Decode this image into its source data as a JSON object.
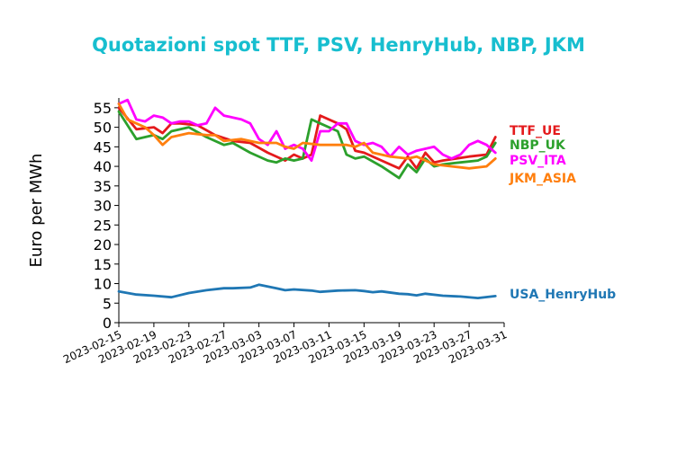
{
  "chart_data": {
    "type": "line",
    "title": "Quotazioni spot TTF, PSV, HenryHub, NBP, JKM",
    "title_color": "#17becf",
    "ylabel": "Euro per MWh",
    "xlabel": "",
    "ylim": [
      0,
      57.5
    ],
    "yticks": [
      0,
      5,
      10,
      15,
      20,
      25,
      30,
      35,
      40,
      45,
      50,
      55
    ],
    "xlim": [
      "2023-02-15",
      "2023-03-31"
    ],
    "xticks": [
      "2023-02-15",
      "2023-02-19",
      "2023-02-23",
      "2023-02-27",
      "2023-03-03",
      "2023-03-07",
      "2023-03-11",
      "2023-03-15",
      "2023-03-19",
      "2023-03-23",
      "2023-03-27",
      "2023-03-31"
    ],
    "grid": false,
    "legend": "labels at right end of lines",
    "series": [
      {
        "name": "TTF_UE",
        "color": "#e41a1c",
        "x": [
          "2023-02-15",
          "2023-02-17",
          "2023-02-19",
          "2023-02-20",
          "2023-02-21",
          "2023-02-22",
          "2023-02-24",
          "2023-02-26",
          "2023-02-28",
          "2023-03-02",
          "2023-03-04",
          "2023-03-06",
          "2023-03-07",
          "2023-03-08",
          "2023-03-09",
          "2023-03-10",
          "2023-03-12",
          "2023-03-13",
          "2023-03-14",
          "2023-03-15",
          "2023-03-17",
          "2023-03-19",
          "2023-03-20",
          "2023-03-21",
          "2023-03-22",
          "2023-03-23",
          "2023-03-24",
          "2023-03-27",
          "2023-03-29",
          "2023-03-30"
        ],
        "y": [
          55,
          49.5,
          50,
          48.5,
          51,
          51,
          50.5,
          48,
          46.5,
          46,
          43.5,
          41.5,
          43,
          42,
          43,
          53,
          51,
          49.5,
          44,
          43.5,
          41.5,
          39.5,
          42.5,
          39.5,
          43.5,
          41,
          41.5,
          42.5,
          43,
          47.5
        ]
      },
      {
        "name": "NBP_UK",
        "color": "#2ca02c",
        "x": [
          "2023-02-15",
          "2023-02-17",
          "2023-02-18",
          "2023-02-19",
          "2023-02-20",
          "2023-02-21",
          "2023-02-23",
          "2023-02-25",
          "2023-02-27",
          "2023-02-28",
          "2023-03-02",
          "2023-03-04",
          "2023-03-05",
          "2023-03-06",
          "2023-03-07",
          "2023-03-08",
          "2023-03-09",
          "2023-03-10",
          "2023-03-12",
          "2023-03-13",
          "2023-03-14",
          "2023-03-15",
          "2023-03-17",
          "2023-03-19",
          "2023-03-20",
          "2023-03-21",
          "2023-03-22",
          "2023-03-23",
          "2023-03-24",
          "2023-03-26",
          "2023-03-28",
          "2023-03-29",
          "2023-03-30"
        ],
        "y": [
          54,
          47,
          47.5,
          48,
          47,
          49,
          50,
          47.5,
          45.5,
          46,
          43.5,
          41.5,
          41,
          42,
          41.5,
          42,
          52,
          51,
          49,
          43,
          42,
          42.5,
          40,
          37,
          40.5,
          38.5,
          42,
          40,
          40.5,
          41,
          41.5,
          42.5,
          46
        ]
      },
      {
        "name": "PSV_ITA",
        "color": "#ff00ff",
        "x": [
          "2023-02-15",
          "2023-02-16",
          "2023-02-17",
          "2023-02-18",
          "2023-02-19",
          "2023-02-20",
          "2023-02-21",
          "2023-02-22",
          "2023-02-23",
          "2023-02-24",
          "2023-02-25",
          "2023-02-26",
          "2023-02-27",
          "2023-02-28",
          "2023-03-01",
          "2023-03-02",
          "2023-03-03",
          "2023-03-04",
          "2023-03-05",
          "2023-03-06",
          "2023-03-07",
          "2023-03-08",
          "2023-03-09",
          "2023-03-10",
          "2023-03-11",
          "2023-03-12",
          "2023-03-13",
          "2023-03-14",
          "2023-03-15",
          "2023-03-16",
          "2023-03-17",
          "2023-03-18",
          "2023-03-19",
          "2023-03-20",
          "2023-03-21",
          "2023-03-22",
          "2023-03-23",
          "2023-03-24",
          "2023-03-25",
          "2023-03-26",
          "2023-03-27",
          "2023-03-28",
          "2023-03-29",
          "2023-03-30"
        ],
        "y": [
          56,
          57,
          52,
          51.5,
          53,
          52.5,
          51,
          51.5,
          51.5,
          50.5,
          51,
          55,
          53,
          52.5,
          52,
          51,
          47,
          45.5,
          49,
          44.5,
          45.5,
          44.5,
          41.5,
          49,
          49,
          51,
          51,
          46.5,
          45.5,
          46,
          45,
          42.5,
          45,
          43,
          44,
          44.5,
          45,
          43,
          42,
          43,
          45.5,
          46.5,
          45.5,
          43.5
        ]
      },
      {
        "name": "JKM_ASIA",
        "color": "#ff7f0e",
        "x": [
          "2023-02-15",
          "2023-02-16",
          "2023-02-17",
          "2023-02-18",
          "2023-02-19",
          "2023-02-20",
          "2023-02-21",
          "2023-02-23",
          "2023-02-25",
          "2023-02-26",
          "2023-02-27",
          "2023-03-01",
          "2023-03-03",
          "2023-03-05",
          "2023-03-06",
          "2023-03-07",
          "2023-03-08",
          "2023-03-10",
          "2023-03-13",
          "2023-03-14",
          "2023-03-15",
          "2023-03-16",
          "2023-03-18",
          "2023-03-20",
          "2023-03-21",
          "2023-03-23",
          "2023-03-25",
          "2023-03-27",
          "2023-03-29",
          "2023-03-30"
        ],
        "y": [
          56,
          52,
          51,
          50,
          48,
          45.5,
          47.5,
          48.5,
          48,
          48,
          46.5,
          47,
          46,
          46,
          45,
          44.5,
          46,
          45.5,
          45.5,
          45,
          46,
          43.5,
          42.5,
          42,
          42.5,
          40.5,
          40,
          39.5,
          40,
          42
        ]
      },
      {
        "name": "USA_HenryHub",
        "color": "#1f77b4",
        "x": [
          "2023-02-15",
          "2023-02-17",
          "2023-02-19",
          "2023-02-21",
          "2023-02-23",
          "2023-02-25",
          "2023-02-27",
          "2023-02-28",
          "2023-03-02",
          "2023-03-03",
          "2023-03-05",
          "2023-03-06",
          "2023-03-07",
          "2023-03-09",
          "2023-03-10",
          "2023-03-12",
          "2023-03-14",
          "2023-03-15",
          "2023-03-16",
          "2023-03-17",
          "2023-03-19",
          "2023-03-20",
          "2023-03-21",
          "2023-03-22",
          "2023-03-24",
          "2023-03-26",
          "2023-03-28",
          "2023-03-30"
        ],
        "y": [
          8,
          7.2,
          6.9,
          6.5,
          7.6,
          8.3,
          8.8,
          8.8,
          9,
          9.7,
          8.8,
          8.3,
          8.5,
          8.2,
          7.9,
          8.2,
          8.3,
          8.1,
          7.8,
          8,
          7.4,
          7.3,
          7,
          7.4,
          6.9,
          6.7,
          6.3,
          6.8
        ]
      }
    ]
  }
}
